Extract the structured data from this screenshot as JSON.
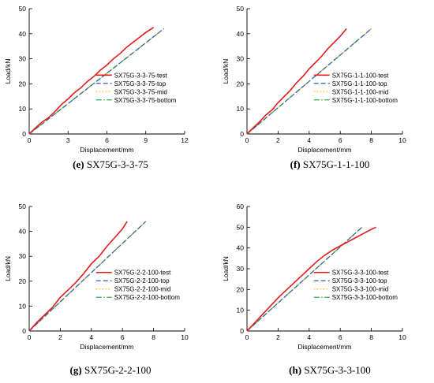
{
  "chart_data": [
    {
      "id": "e",
      "type": "line",
      "caption_letter": "(e)",
      "caption_text": "SX75G-3-3-75",
      "xlabel": "Displacement/mm",
      "ylabel": "Load/kN",
      "xlim": [
        0,
        12
      ],
      "ylim": [
        0,
        50
      ],
      "xticks": [
        0,
        3,
        6,
        9,
        12
      ],
      "yticks": [
        0,
        10,
        20,
        30,
        40,
        50
      ],
      "legend_position": "lower-right",
      "series": [
        {
          "name": "SX75G-3-3-75-test",
          "color": "#e41a1c",
          "style": "solid",
          "x": [
            0,
            0.5,
            1.0,
            1.5,
            2.0,
            2.5,
            3.0,
            3.5,
            4.0,
            4.5,
            5.0,
            5.5,
            6.0,
            6.5,
            7.0,
            7.5,
            8.0,
            8.5,
            9.0,
            9.6
          ],
          "y": [
            0,
            2.5,
            4.8,
            6.5,
            9.0,
            11.8,
            14.0,
            16.5,
            18.5,
            21.0,
            23.0,
            25.5,
            27.5,
            30.0,
            32.0,
            34.5,
            36.5,
            38.5,
            40.5,
            42.5
          ]
        },
        {
          "name": "SX75G-3-3-75-top",
          "color": "#2c5fb5",
          "style": "dashed",
          "x": [
            0,
            10.4
          ],
          "y": [
            0,
            42
          ]
        },
        {
          "name": "SX75G-3-3-75-mid",
          "color": "#f5b800",
          "style": "dotted",
          "x": [
            0,
            10.4
          ],
          "y": [
            0,
            42
          ]
        },
        {
          "name": "SX75G-3-3-75-bottom",
          "color": "#2ab34a",
          "style": "dashdot",
          "x": [
            0,
            10.4
          ],
          "y": [
            0,
            42
          ]
        }
      ]
    },
    {
      "id": "f",
      "type": "line",
      "caption_letter": "(f)",
      "caption_text": "SX75G-1-1-100",
      "xlabel": "Displacement/mm",
      "ylabel": "Load/kN",
      "xlim": [
        0,
        10
      ],
      "ylim": [
        0,
        50
      ],
      "xticks": [
        0,
        2,
        4,
        6,
        8,
        10
      ],
      "yticks": [
        0,
        10,
        20,
        30,
        40,
        50
      ],
      "legend_position": "lower-right",
      "series": [
        {
          "name": "SX75G-1-1-100-test",
          "color": "#e41a1c",
          "style": "solid",
          "x": [
            0,
            0.4,
            0.8,
            1.2,
            1.6,
            2.0,
            2.4,
            2.8,
            3.2,
            3.6,
            4.0,
            4.4,
            4.8,
            5.2,
            5.6,
            6.0,
            6.4
          ],
          "y": [
            0,
            2.5,
            4.8,
            7.5,
            9.5,
            12.5,
            15.0,
            17.5,
            20.5,
            23.0,
            26.0,
            28.5,
            31.0,
            34.0,
            36.5,
            39.0,
            42.0
          ]
        },
        {
          "name": "SX75G-1-1-100-top",
          "color": "#2c5fb5",
          "style": "dashed",
          "x": [
            0,
            8.0
          ],
          "y": [
            0,
            42
          ]
        },
        {
          "name": "SX75G-1-1-100-mid",
          "color": "#f5b800",
          "style": "dotted",
          "x": [
            0,
            8.0
          ],
          "y": [
            0,
            42
          ]
        },
        {
          "name": "SX75G-1-1-100-bottom",
          "color": "#2ab34a",
          "style": "dashdot",
          "x": [
            0,
            8.0
          ],
          "y": [
            0,
            42
          ]
        }
      ]
    },
    {
      "id": "g",
      "type": "line",
      "caption_letter": "(g)",
      "caption_text": "SX75G-2-2-100",
      "xlabel": "Displacement/mm",
      "ylabel": "Load/kN",
      "xlim": [
        0,
        10
      ],
      "ylim": [
        0,
        50
      ],
      "xticks": [
        0,
        2,
        4,
        6,
        8,
        10
      ],
      "yticks": [
        0,
        10,
        20,
        30,
        40,
        50
      ],
      "legend_position": "lower-right",
      "series": [
        {
          "name": "SX75G-2-2-100-test",
          "color": "#e41a1c",
          "style": "solid",
          "x": [
            0,
            0.5,
            1.0,
            1.5,
            2.0,
            2.5,
            3.0,
            3.5,
            4.0,
            4.5,
            5.0,
            5.5,
            6.0,
            6.3
          ],
          "y": [
            0,
            3.5,
            6.5,
            9.5,
            13.5,
            16.5,
            19.5,
            23.0,
            27.0,
            30.0,
            34.0,
            37.5,
            41.0,
            44.0
          ]
        },
        {
          "name": "SX75G-2-2-100-top",
          "color": "#2c5fb5",
          "style": "dashed",
          "x": [
            0,
            7.5
          ],
          "y": [
            0,
            44
          ]
        },
        {
          "name": "SX75G-2-2-100-mid",
          "color": "#f5b800",
          "style": "dotted",
          "x": [
            0,
            7.5
          ],
          "y": [
            0,
            44
          ]
        },
        {
          "name": "SX75G-2-2-100-bottom",
          "color": "#2ab34a",
          "style": "dashdot",
          "x": [
            0,
            7.5
          ],
          "y": [
            0,
            44
          ]
        }
      ]
    },
    {
      "id": "h",
      "type": "line",
      "caption_letter": "(h)",
      "caption_text": "SX75G-3-3-100",
      "xlabel": "Displacement/mm",
      "ylabel": "Load/kN",
      "xlim": [
        0,
        10
      ],
      "ylim": [
        0,
        60
      ],
      "xticks": [
        0,
        2,
        4,
        6,
        8,
        10
      ],
      "yticks": [
        0,
        10,
        20,
        30,
        40,
        50,
        60
      ],
      "legend_position": "lower-right",
      "series": [
        {
          "name": "SX75G-3-3-100-test",
          "color": "#e41a1c",
          "style": "solid",
          "x": [
            0,
            0.5,
            1.0,
            1.5,
            2.0,
            2.5,
            3.0,
            3.5,
            4.0,
            4.5,
            5.0,
            5.5,
            6.0,
            6.5,
            7.0,
            7.5,
            8.0,
            8.3
          ],
          "y": [
            0,
            4.0,
            8.0,
            12.0,
            16.0,
            19.5,
            23.0,
            26.5,
            30.0,
            33.5,
            36.5,
            39.0,
            41.0,
            43.0,
            45.0,
            47.0,
            49.0,
            50.0
          ]
        },
        {
          "name": "SX75G-3-3-100-top",
          "color": "#2c5fb5",
          "style": "dashed",
          "x": [
            0,
            7.4
          ],
          "y": [
            0,
            50
          ]
        },
        {
          "name": "SX75G-3-3-100-mid",
          "color": "#f5b800",
          "style": "dotted",
          "x": [
            0,
            7.4
          ],
          "y": [
            0,
            50
          ]
        },
        {
          "name": "SX75G-3-3-100-bottom",
          "color": "#2ab34a",
          "style": "dashdot",
          "x": [
            0,
            7.4
          ],
          "y": [
            0,
            50
          ]
        }
      ]
    }
  ]
}
